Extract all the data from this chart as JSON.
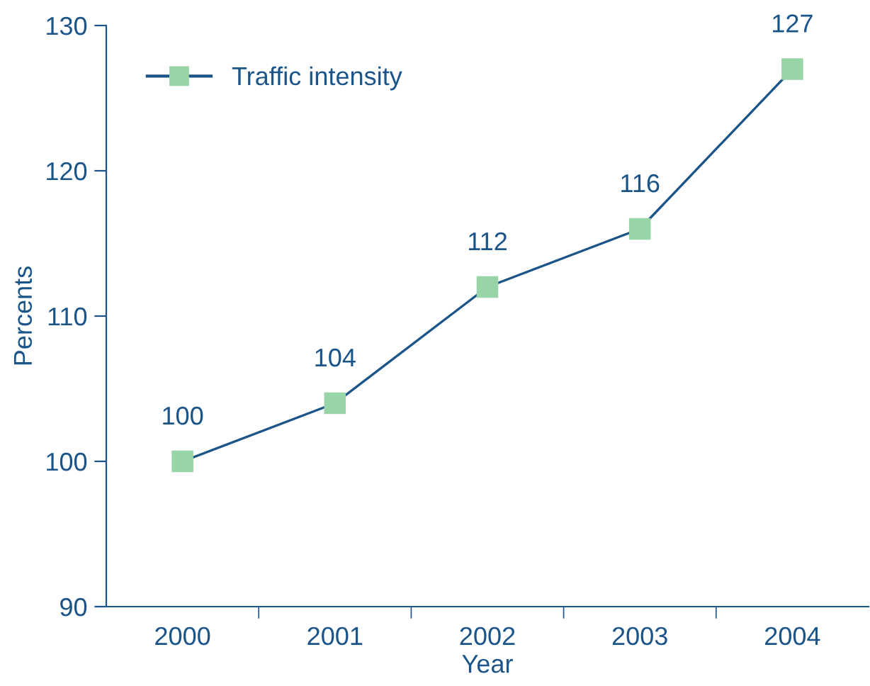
{
  "chart_data": {
    "type": "line",
    "xlabel": "Year",
    "ylabel": "Percents",
    "categories": [
      "2000",
      "2001",
      "2002",
      "2003",
      "2004"
    ],
    "series": [
      {
        "name": "Traffic intensity",
        "color": "#1b5488",
        "values": [
          100,
          104,
          112,
          116,
          127
        ]
      }
    ],
    "marker": "square",
    "line_style": "solid",
    "data_labels": true,
    "legend": "top left",
    "grid": false,
    "ylim": [
      90,
      130
    ],
    "yticks": [
      90,
      100,
      110,
      120,
      130
    ]
  }
}
